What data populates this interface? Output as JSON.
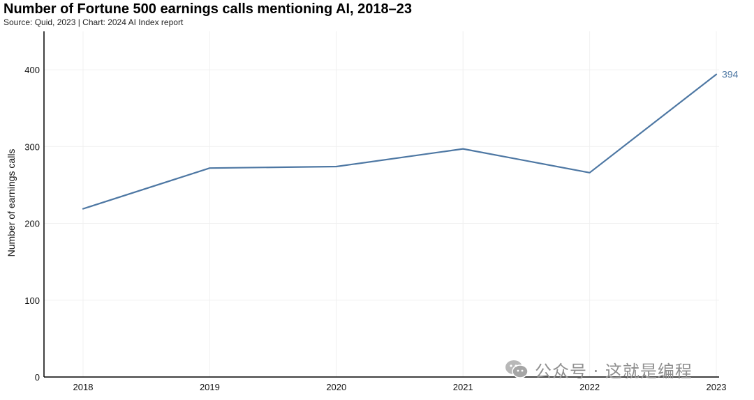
{
  "header": {
    "title": "Number of Fortune 500 earnings calls mentioning AI, 2018–23",
    "source": "Source: Quid, 2023 | Chart: 2024 AI Index report"
  },
  "watermark": {
    "text": "公众号 · 这就是编程",
    "icon": "wechat-icon"
  },
  "colors": {
    "series": "#4d77a3",
    "grid": "#f0f0f0",
    "axis": "#000000"
  },
  "chart_data": {
    "type": "line",
    "title": "Number of Fortune 500 earnings calls mentioning AI, 2018–23",
    "subtitle": "Source: Quid, 2023 | Chart: 2024 AI Index report",
    "xlabel": "",
    "ylabel": "Number of earnings calls",
    "x": [
      "2018",
      "2019",
      "2020",
      "2021",
      "2022",
      "2023"
    ],
    "series": [
      {
        "values": [
          219,
          272,
          274,
          297,
          266,
          394
        ]
      }
    ],
    "yticks": [
      0,
      100,
      200,
      300,
      400
    ],
    "ylim": [
      0,
      450
    ],
    "grid": true,
    "legend": "none",
    "data_labels": [
      {
        "x": "2023",
        "value": 394,
        "text": "394"
      }
    ]
  }
}
